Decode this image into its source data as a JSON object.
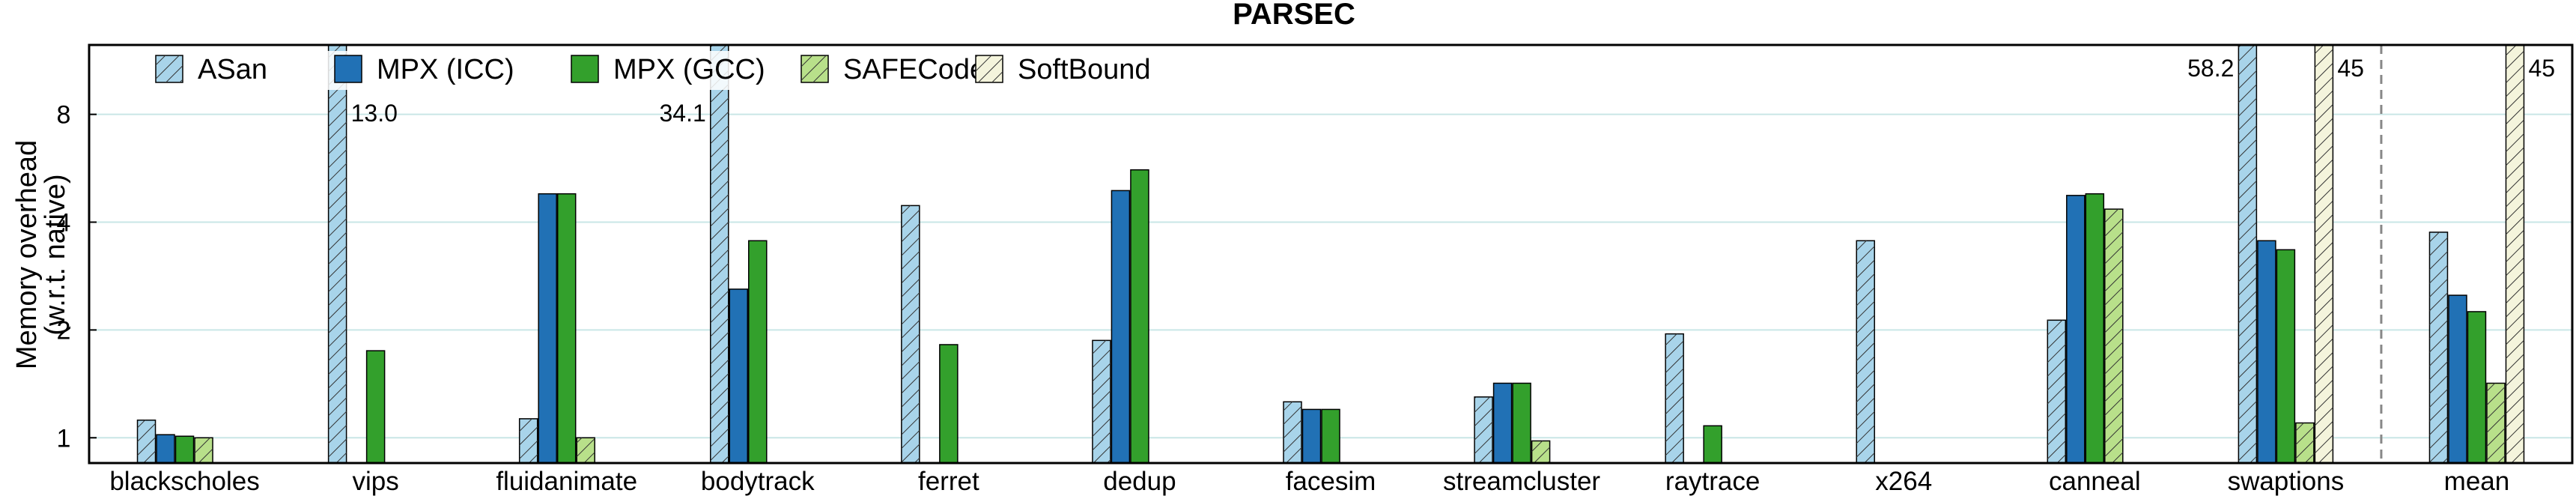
{
  "chart_data": {
    "type": "bar",
    "title": "PARSEC",
    "ylabel_line1": "Memory overhead",
    "ylabel_line2": "(w.r.t. native)",
    "yscale": "log2",
    "ylim": [
      0.85,
      12.5
    ],
    "yticks": [
      1,
      2,
      4,
      8
    ],
    "ytick_labels": [
      "1",
      "2",
      "4",
      "8"
    ],
    "grid": "horizontal",
    "legend_location": "top-left",
    "categories": [
      "blackscholes",
      "vips",
      "fluidanimate",
      "bodytrack",
      "ferret",
      "dedup",
      "facesim",
      "streamcluster",
      "raytrace",
      "x264",
      "canneal",
      "swaptions",
      "mean"
    ],
    "separator_before": "mean",
    "series": [
      {
        "name": "ASan",
        "color": "#a8d4ea",
        "hatch": true,
        "values": [
          1.12,
          null,
          1.13,
          null,
          4.45,
          1.87,
          1.26,
          1.3,
          1.95,
          3.55,
          2.13,
          null,
          3.75
        ],
        "clipped_labels": [
          null,
          "13.0",
          null,
          "34.1",
          null,
          null,
          null,
          null,
          null,
          null,
          null,
          "58.2",
          null
        ],
        "clipped_values": [
          null,
          13.0,
          null,
          34.1,
          null,
          null,
          null,
          null,
          null,
          null,
          null,
          58.2,
          null
        ]
      },
      {
        "name": "MPX (ICC)",
        "color": "#2171b5",
        "hatch": false,
        "values": [
          1.02,
          null,
          4.8,
          2.6,
          null,
          4.9,
          1.2,
          1.42,
          null,
          null,
          4.75,
          3.55,
          2.5
        ],
        "clipped_labels": [
          null,
          null,
          null,
          null,
          null,
          null,
          null,
          null,
          null,
          null,
          null,
          null,
          null
        ],
        "clipped_values": [
          null,
          null,
          null,
          null,
          null,
          null,
          null,
          null,
          null,
          null,
          null,
          null,
          null
        ]
      },
      {
        "name": "MPX (GCC)",
        "color": "#33a02c",
        "hatch": false,
        "values": [
          1.01,
          1.75,
          4.8,
          3.55,
          1.82,
          5.6,
          1.2,
          1.42,
          1.08,
          null,
          4.8,
          3.35,
          2.25
        ],
        "clipped_labels": [
          null,
          null,
          null,
          null,
          null,
          null,
          null,
          null,
          null,
          null,
          null,
          null,
          null
        ],
        "clipped_values": [
          null,
          null,
          null,
          null,
          null,
          null,
          null,
          null,
          null,
          null,
          null,
          null,
          null
        ]
      },
      {
        "name": "SAFECode",
        "color": "#b8e08a",
        "hatch": true,
        "values": [
          1.0,
          null,
          1.0,
          null,
          null,
          null,
          null,
          0.98,
          null,
          null,
          4.35,
          1.1,
          1.42
        ],
        "clipped_labels": [
          null,
          null,
          null,
          null,
          null,
          null,
          null,
          null,
          null,
          null,
          null,
          null,
          null
        ],
        "clipped_values": [
          null,
          null,
          null,
          null,
          null,
          null,
          null,
          null,
          null,
          null,
          null,
          null,
          null
        ]
      },
      {
        "name": "SoftBound",
        "color": "#f4f4dc",
        "hatch": true,
        "values": [
          null,
          null,
          null,
          null,
          null,
          null,
          null,
          null,
          null,
          null,
          null,
          null,
          null
        ],
        "clipped_labels": [
          null,
          null,
          null,
          null,
          null,
          null,
          null,
          null,
          null,
          null,
          null,
          "45",
          "45"
        ],
        "clipped_values": [
          null,
          null,
          null,
          null,
          null,
          null,
          null,
          null,
          null,
          null,
          null,
          45,
          45
        ]
      }
    ]
  }
}
